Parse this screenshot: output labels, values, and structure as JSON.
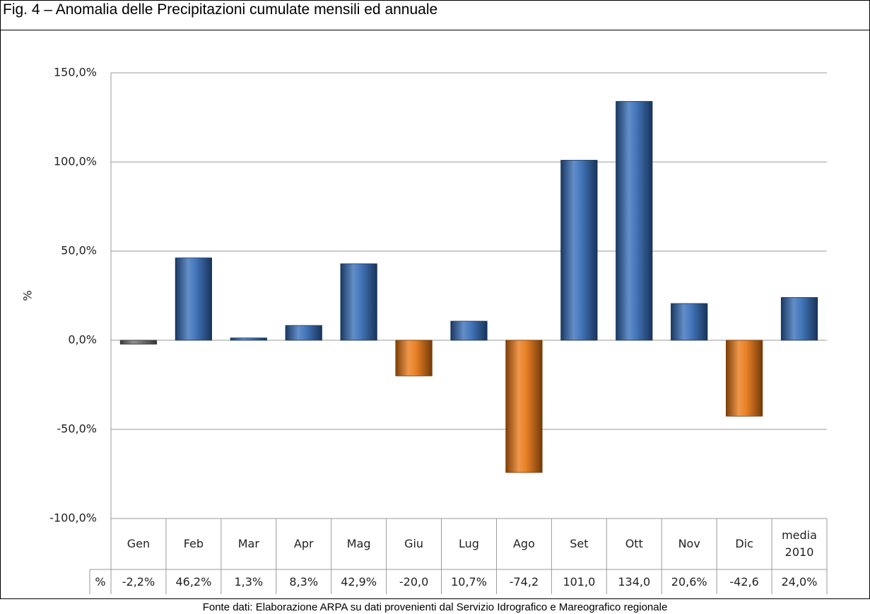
{
  "title": "Fig. 4 – Anomalia delle Precipitazioni cumulate mensili ed annuale",
  "footer": "Fonte dati: Elaborazione ARPA su dati provenienti dal Servizio Idrografico e Mareografico regionale",
  "chart_data": {
    "type": "bar",
    "y_label": "%",
    "table_row_label": "%",
    "categories": [
      "Gen",
      "Feb",
      "Mar",
      "Apr",
      "Mag",
      "Giu",
      "Lug",
      "Ago",
      "Set",
      "Ott",
      "Nov",
      "Dic",
      "media 2010"
    ],
    "values": [
      -2.2,
      46.2,
      1.3,
      8.3,
      42.9,
      -20.0,
      10.7,
      -74.2,
      101.0,
      134.0,
      20.6,
      -42.6,
      24.0
    ],
    "value_labels": [
      "-2,2%",
      "46,2%",
      "1,3%",
      "8,3%",
      "42,9%",
      "-20,0",
      "10,7%",
      "-74,2",
      "101,0",
      "134,0",
      "20,6%",
      "-42,6",
      "24,0%"
    ],
    "colors": [
      "#6b6b6b",
      "#2f68b4",
      "#2f68b4",
      "#2f68b4",
      "#2f68b4",
      "#e8740f",
      "#2f68b4",
      "#e8740f",
      "#2f68b4",
      "#2f68b4",
      "#2f68b4",
      "#e8740f",
      "#2f68b4"
    ],
    "ylim": [
      -100,
      150
    ],
    "yticks": [
      {
        "value": -100,
        "label": "-100,0%"
      },
      {
        "value": -50,
        "label": "-50,0%"
      },
      {
        "value": 0,
        "label": "0,0%"
      },
      {
        "value": 50,
        "label": "50,0%"
      },
      {
        "value": 100,
        "label": "100,0%"
      },
      {
        "value": 150,
        "label": "150,0%"
      }
    ],
    "grid": true
  }
}
